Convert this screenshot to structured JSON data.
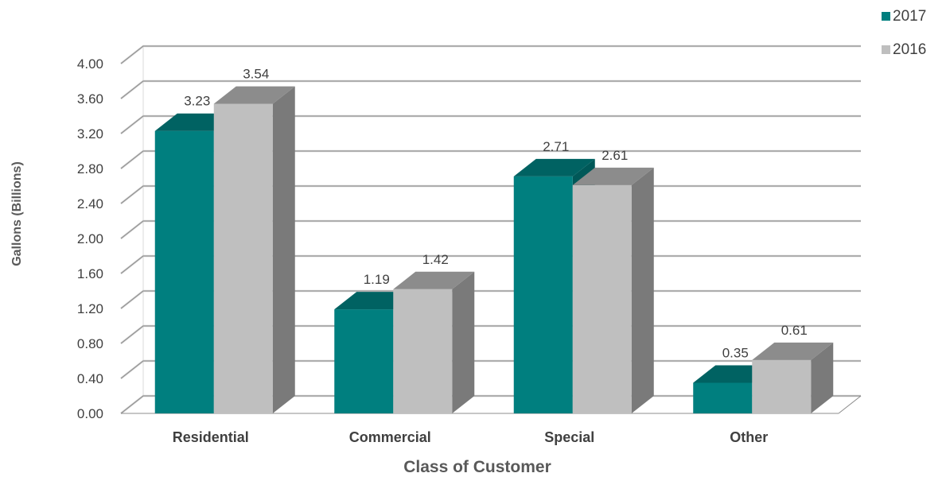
{
  "chart_data": {
    "type": "bar",
    "style": "3d-clustered-column",
    "categories": [
      "Residential",
      "Commercial",
      "Special",
      "Other"
    ],
    "series": [
      {
        "name": "2017",
        "values": [
          3.23,
          1.19,
          2.71,
          0.35
        ],
        "color": "#007F7F",
        "top_color": "#006262",
        "side_color": "#005858"
      },
      {
        "name": "2016",
        "values": [
          3.54,
          1.42,
          2.61,
          0.61
        ],
        "color": "#BFBFBF",
        "top_color": "#8C8C8C",
        "side_color": "#7A7A7A"
      }
    ],
    "data_labels": [
      [
        "3.23",
        "1.19",
        "2.71",
        "0.35"
      ],
      [
        "3.54",
        "1.42",
        "2.61",
        "0.61"
      ]
    ],
    "yticks": [
      "0.00",
      "0.40",
      "0.80",
      "1.20",
      "1.60",
      "2.00",
      "2.40",
      "2.80",
      "3.20",
      "3.60",
      "4.00"
    ],
    "ylim": [
      0,
      4.0
    ],
    "xlabel": "Class of Customer",
    "ylabel": "Gallons (Billions)",
    "grid": true,
    "legend": "top-right"
  }
}
